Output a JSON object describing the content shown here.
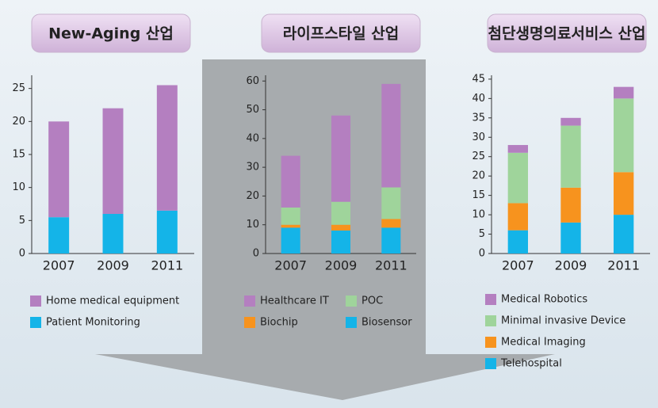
{
  "chart_data": [
    {
      "type": "bar",
      "stacked": true,
      "title": "New-Aging 산업",
      "categories": [
        "2007",
        "2009",
        "2011"
      ],
      "series": [
        {
          "name": "Home medical equipment",
          "color": "#b47fc0",
          "values": [
            14.5,
            16,
            19
          ]
        },
        {
          "name": "Patient Monitoring",
          "color": "#14b4e8",
          "values": [
            5.5,
            6,
            6.5
          ]
        }
      ],
      "ylim": [
        0,
        27
      ],
      "yticks": [
        0,
        5,
        10,
        15,
        20,
        25
      ]
    },
    {
      "type": "bar",
      "stacked": true,
      "title": "라이프스타일 산업",
      "categories": [
        "2007",
        "2009",
        "2011"
      ],
      "series": [
        {
          "name": "Healthcare IT",
          "color": "#b47fc0",
          "values": [
            18,
            30,
            36
          ]
        },
        {
          "name": "POC",
          "color": "#9fd49b",
          "values": [
            6,
            8,
            11
          ]
        },
        {
          "name": "Biochip",
          "color": "#f7931e",
          "values": [
            1,
            2,
            3
          ]
        },
        {
          "name": "Biosensor",
          "color": "#14b4e8",
          "values": [
            9,
            8,
            9
          ]
        }
      ],
      "ylim": [
        0,
        62
      ],
      "yticks": [
        0,
        10,
        20,
        30,
        40,
        50,
        60
      ]
    },
    {
      "type": "bar",
      "stacked": true,
      "title": "첨단생명의료서비스 산업",
      "categories": [
        "2007",
        "2009",
        "2011"
      ],
      "series": [
        {
          "name": "Medical Robotics",
          "color": "#b47fc0",
          "values": [
            2,
            2,
            3
          ]
        },
        {
          "name": "Minimal invasive Device",
          "color": "#9fd49b",
          "values": [
            13,
            16,
            19
          ]
        },
        {
          "name": "Medical Imaging",
          "color": "#f7931e",
          "values": [
            7,
            9,
            11
          ]
        },
        {
          "name": "Telehospital",
          "color": "#14b4e8",
          "values": [
            6,
            8,
            10
          ]
        }
      ],
      "ylim": [
        0,
        46
      ],
      "yticks": [
        0,
        5,
        10,
        15,
        20,
        25,
        30,
        35,
        40,
        45
      ]
    }
  ]
}
